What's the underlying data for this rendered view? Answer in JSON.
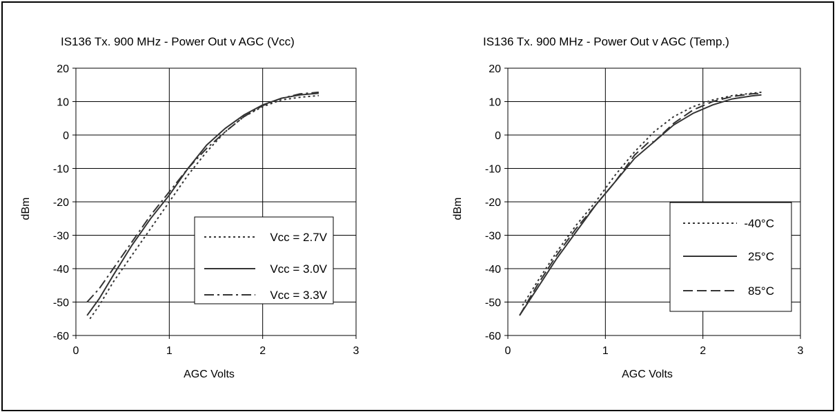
{
  "chart_data": [
    {
      "type": "line",
      "title": "IS136 Tx. 900 MHz - Power Out v AGC (Vcc)",
      "xlabel": "AGC Volts",
      "ylabel": "dBm",
      "xlim": [
        0,
        3
      ],
      "ylim": [
        -60,
        20
      ],
      "xticks": [
        "0",
        "1",
        "2",
        "3"
      ],
      "yticks": [
        "20",
        "10",
        "0",
        "-10",
        "-20",
        "-30",
        "-40",
        "-50",
        "-60"
      ],
      "grid": true,
      "legend_position": "bottom-right",
      "series": [
        {
          "name": "Vcc = 2.7V",
          "style": "dotted",
          "x": [
            0.15,
            0.25,
            0.4,
            0.6,
            0.8,
            1.0,
            1.2,
            1.4,
            1.6,
            1.8,
            2.0,
            2.2,
            2.4,
            2.6
          ],
          "y": [
            -55,
            -51,
            -44,
            -36,
            -28,
            -20,
            -12,
            -5,
            1,
            5.5,
            8.5,
            10.5,
            11.3,
            11.8
          ]
        },
        {
          "name": "Vcc = 3.0V",
          "style": "solid",
          "x": [
            0.12,
            0.25,
            0.4,
            0.6,
            0.8,
            1.0,
            1.2,
            1.4,
            1.6,
            1.8,
            2.0,
            2.2,
            2.4,
            2.6
          ],
          "y": [
            -54,
            -49,
            -42,
            -33,
            -25,
            -18,
            -10,
            -3,
            2,
            6,
            9,
            11,
            12,
            12.5
          ]
        },
        {
          "name": "Vcc = 3.3V",
          "style": "dashdot",
          "x": [
            0.12,
            0.25,
            0.4,
            0.6,
            0.8,
            1.0,
            1.2,
            1.4,
            1.6,
            1.8,
            2.0,
            2.2,
            2.4,
            2.6
          ],
          "y": [
            -50,
            -46,
            -40,
            -32,
            -24,
            -17,
            -10,
            -4,
            1,
            5.5,
            8.8,
            11,
            12.3,
            12.8
          ]
        }
      ]
    },
    {
      "type": "line",
      "title": "IS136 Tx. 900 MHz - Power Out v AGC (Temp.)",
      "xlabel": "AGC Volts",
      "ylabel": "dBm",
      "xlim": [
        0,
        3
      ],
      "ylim": [
        -60,
        20
      ],
      "xticks": [
        "0",
        "1",
        "2",
        "3"
      ],
      "yticks": [
        "20",
        "10",
        "0",
        "-10",
        "-20",
        "-30",
        "-40",
        "-50",
        "-60"
      ],
      "grid": true,
      "legend_position": "middle-right",
      "series": [
        {
          "name": "-40°C",
          "style": "dotted",
          "x": [
            0.15,
            0.3,
            0.5,
            0.7,
            0.9,
            1.1,
            1.3,
            1.5,
            1.7,
            1.9,
            2.1,
            2.3,
            2.5,
            2.6
          ],
          "y": [
            -51,
            -44,
            -35,
            -27,
            -20,
            -12,
            -5,
            1,
            5.5,
            8.5,
            10.5,
            11.8,
            12.5,
            12.8
          ]
        },
        {
          "name": "25°C",
          "style": "solid",
          "x": [
            0.12,
            0.3,
            0.5,
            0.7,
            0.9,
            1.1,
            1.3,
            1.5,
            1.7,
            1.9,
            2.1,
            2.3,
            2.5,
            2.6
          ],
          "y": [
            -54,
            -46,
            -37,
            -29,
            -21,
            -14,
            -7,
            -2,
            3,
            6.5,
            9,
            10.8,
            11.7,
            12
          ]
        },
        {
          "name": "85°C",
          "style": "dashed",
          "x": [
            0.12,
            0.3,
            0.5,
            0.7,
            0.9,
            1.1,
            1.3,
            1.45,
            1.5,
            1.7,
            1.9,
            2.1,
            2.3,
            2.5,
            2.6
          ],
          "y": [
            -54,
            -45,
            -36,
            -28,
            -21,
            -14,
            -6,
            -2,
            -2,
            3.5,
            7.5,
            10,
            11.5,
            12.3,
            12.5
          ]
        }
      ]
    }
  ]
}
